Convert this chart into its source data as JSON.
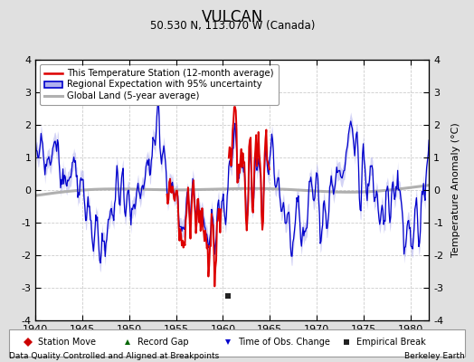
{
  "title": "VULCAN",
  "subtitle": "50.530 N, 113.070 W (Canada)",
  "xlabel_bottom": "Data Quality Controlled and Aligned at Breakpoints",
  "xlabel_right": "Berkeley Earth",
  "ylabel": "Temperature Anomaly (°C)",
  "xlim": [
    1940,
    1982
  ],
  "ylim": [
    -4,
    4
  ],
  "yticks": [
    -4,
    -3,
    -2,
    -1,
    0,
    1,
    2,
    3,
    4
  ],
  "xticks": [
    1940,
    1945,
    1950,
    1955,
    1960,
    1965,
    1970,
    1975,
    1980
  ],
  "background_color": "#e0e0e0",
  "plot_bg_color": "#ffffff",
  "grid_color": "#cccccc",
  "red_line_color": "#dd0000",
  "blue_line_color": "#0000cc",
  "blue_fill_color": "#b0b0ee",
  "gray_line_color": "#b0b0b0",
  "empirical_break_x": 1960.5,
  "empirical_break_y": -3.25,
  "legend_items": [
    "This Temperature Station (12-month average)",
    "Regional Expectation with 95% uncertainty",
    "Global Land (5-year average)"
  ],
  "bottom_legend": [
    {
      "marker": "D",
      "color": "#cc0000",
      "label": "Station Move"
    },
    {
      "marker": "^",
      "color": "#006600",
      "label": "Record Gap"
    },
    {
      "marker": "v",
      "color": "#0000cc",
      "label": "Time of Obs. Change"
    },
    {
      "marker": "s",
      "color": "#222222",
      "label": "Empirical Break"
    }
  ],
  "red_start": 1954.0,
  "red_end": 1965.0,
  "red_gap_start": 1959.85,
  "red_gap_end": 1960.55
}
